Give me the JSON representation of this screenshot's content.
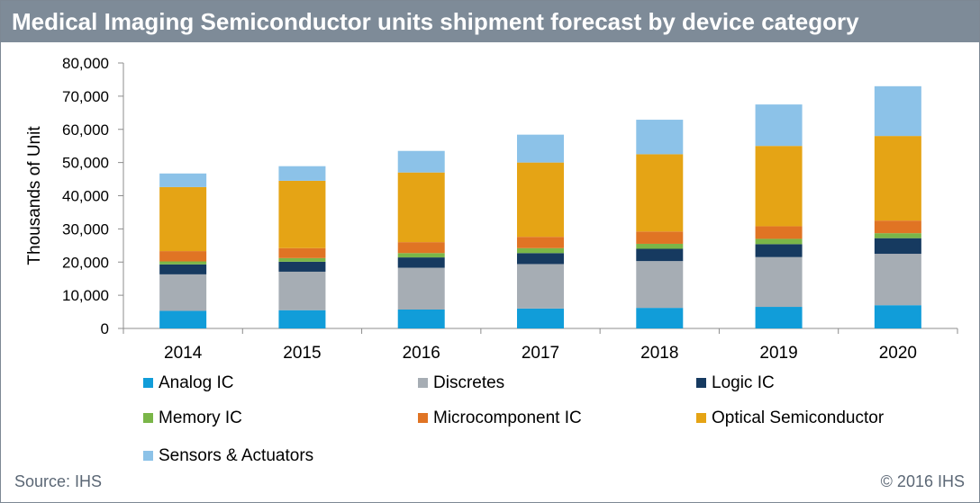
{
  "header": {
    "title": "Medical Imaging Semiconductor units shipment forecast by device category"
  },
  "footer": {
    "source": "Source: IHS",
    "copyright": "© 2016 IHS"
  },
  "colors": {
    "title_bar": "#7e8b98",
    "Analog IC": "#119dd9",
    "Discretes": "#a6adb4",
    "Logic IC": "#163a60",
    "Memory IC": "#7ab648",
    "Microcomponent IC": "#e07424",
    "Optical Semiconductor": "#e5a415",
    "Sensors & Actuators": "#8cc2e8"
  },
  "chart_data": {
    "type": "bar",
    "stacked": true,
    "title": "Medical Imaging Semiconductor units shipment forecast by device category",
    "xlabel": "",
    "ylabel": "Thousands of Unit",
    "ylim": [
      0,
      80000
    ],
    "yticks": [
      0,
      10000,
      20000,
      30000,
      40000,
      50000,
      60000,
      70000,
      80000
    ],
    "ytick_labels": [
      "0",
      "10,000",
      "20,000",
      "30,000",
      "40,000",
      "50,000",
      "60,000",
      "70,000",
      "80,000"
    ],
    "grid": false,
    "legend_position": "bottom",
    "categories": [
      "2014",
      "2015",
      "2016",
      "2017",
      "2018",
      "2019",
      "2020"
    ],
    "series": [
      {
        "name": "Analog IC",
        "values": [
          5300,
          5500,
          5700,
          6000,
          6200,
          6500,
          7000
        ]
      },
      {
        "name": "Discretes",
        "values": [
          11000,
          11600,
          12600,
          13400,
          14100,
          15000,
          15500
        ]
      },
      {
        "name": "Logic IC",
        "values": [
          3000,
          3000,
          3100,
          3300,
          3700,
          3900,
          4700
        ]
      },
      {
        "name": "Memory IC",
        "values": [
          900,
          1100,
          1300,
          1500,
          1500,
          1600,
          1500
        ]
      },
      {
        "name": "Microcomponent IC",
        "values": [
          3100,
          3000,
          3300,
          3400,
          3700,
          3800,
          3800
        ]
      },
      {
        "name": "Optical Semiconductor",
        "values": [
          19300,
          20300,
          21000,
          22400,
          23300,
          24200,
          25500
        ]
      },
      {
        "name": "Sensors & Actuators",
        "values": [
          4100,
          4400,
          6500,
          8400,
          10400,
          12500,
          15000
        ]
      }
    ]
  }
}
